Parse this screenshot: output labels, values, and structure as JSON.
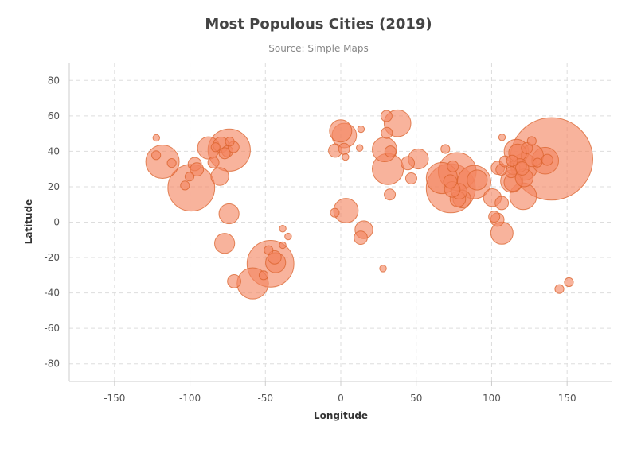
{
  "chart_data": {
    "type": "scatter",
    "title": "Most Populous Cities (2019)",
    "subtitle": "Source: Simple Maps",
    "xlabel": "Longitude",
    "ylabel": "Latitude",
    "xlim": [
      -180,
      180
    ],
    "ylim": [
      -90,
      90
    ],
    "x_ticks": [
      -150,
      -100,
      -50,
      0,
      50,
      100,
      150
    ],
    "y_ticks": [
      -80,
      -60,
      -40,
      -20,
      0,
      20,
      40,
      60,
      80
    ],
    "grid": true,
    "legend": "none",
    "colors": {
      "bubble_fill": "#f4845f",
      "bubble_stroke": "#d9622b",
      "grid": "#dddddd",
      "axis": "#cccccc"
    },
    "note": "each point: x = longitude, y = latitude, size = relative city size",
    "points": [
      {
        "x": 139.7,
        "y": 35.7,
        "size": 37
      },
      {
        "x": -99.1,
        "y": 19.4,
        "size": 21
      },
      {
        "x": -74.0,
        "y": 40.7,
        "size": 19
      },
      {
        "x": 72.9,
        "y": 19.1,
        "size": 22
      },
      {
        "x": 77.2,
        "y": 28.6,
        "size": 17
      },
      {
        "x": 88.4,
        "y": 22.6,
        "size": 15
      },
      {
        "x": 90.4,
        "y": 23.8,
        "size": 9
      },
      {
        "x": -46.6,
        "y": -23.5,
        "size": 21
      },
      {
        "x": -43.2,
        "y": -22.9,
        "size": 9
      },
      {
        "x": -58.4,
        "y": -34.6,
        "size": 14
      },
      {
        "x": 67.0,
        "y": 24.9,
        "size": 14
      },
      {
        "x": 121.5,
        "y": 31.2,
        "size": 12
      },
      {
        "x": 116.4,
        "y": 39.9,
        "size": 11
      },
      {
        "x": 113.3,
        "y": 23.1,
        "size": 10
      },
      {
        "x": 114.1,
        "y": 22.5,
        "size": 8
      },
      {
        "x": 120.9,
        "y": 14.6,
        "size": 12
      },
      {
        "x": 106.8,
        "y": -6.2,
        "size": 10
      },
      {
        "x": 126.9,
        "y": 37.6,
        "size": 10
      },
      {
        "x": 135.5,
        "y": 34.7,
        "size": 12
      },
      {
        "x": 31.2,
        "y": 30.0,
        "size": 14
      },
      {
        "x": 29.0,
        "y": 41.0,
        "size": 11
      },
      {
        "x": 37.6,
        "y": 55.8,
        "size": 12
      },
      {
        "x": 3.4,
        "y": 6.5,
        "size": 11
      },
      {
        "x": 15.3,
        "y": -4.3,
        "size": 8
      },
      {
        "x": -118.2,
        "y": 34.1,
        "size": 15
      },
      {
        "x": -87.6,
        "y": 41.9,
        "size": 10
      },
      {
        "x": -79.4,
        "y": 43.7,
        "size": 7
      },
      {
        "x": -77.0,
        "y": -12.0,
        "size": 9
      },
      {
        "x": -74.1,
        "y": 4.7,
        "size": 9
      },
      {
        "x": -70.7,
        "y": -33.4,
        "size": 6
      },
      {
        "x": 2.3,
        "y": 48.9,
        "size": 11
      },
      {
        "x": -0.1,
        "y": 51.5,
        "size": 10
      },
      {
        "x": 51.4,
        "y": 35.7,
        "size": 9
      },
      {
        "x": 80.3,
        "y": 13.1,
        "size": 8
      },
      {
        "x": 77.6,
        "y": 13.0,
        "size": 7
      },
      {
        "x": 78.5,
        "y": 17.4,
        "size": 7
      },
      {
        "x": 72.6,
        "y": 23.0,
        "size": 6
      },
      {
        "x": 73.9,
        "y": 18.5,
        "size": 7
      },
      {
        "x": 100.5,
        "y": 13.8,
        "size": 8
      },
      {
        "x": 106.7,
        "y": 10.8,
        "size": 6
      },
      {
        "x": 103.8,
        "y": 1.4,
        "size": 6
      },
      {
        "x": 101.7,
        "y": 3.1,
        "size": 5
      },
      {
        "x": 104.1,
        "y": 30.7,
        "size": 6
      },
      {
        "x": 106.5,
        "y": 29.6,
        "size": 5
      },
      {
        "x": 114.3,
        "y": 30.6,
        "size": 6
      },
      {
        "x": 117.2,
        "y": 39.1,
        "size": 8
      },
      {
        "x": 118.8,
        "y": 32.1,
        "size": 6
      },
      {
        "x": 120.2,
        "y": 30.3,
        "size": 6
      },
      {
        "x": 108.9,
        "y": 34.3,
        "size": 5
      },
      {
        "x": 123.4,
        "y": 41.8,
        "size": 5
      },
      {
        "x": 126.6,
        "y": 45.8,
        "size": 4
      },
      {
        "x": 113.6,
        "y": 34.7,
        "size": 5
      },
      {
        "x": 112.9,
        "y": 28.2,
        "size": 5
      },
      {
        "x": 121.6,
        "y": 25.0,
        "size": 8
      },
      {
        "x": 130.4,
        "y": 33.6,
        "size": 4
      },
      {
        "x": 136.9,
        "y": 35.2,
        "size": 5
      },
      {
        "x": 44.4,
        "y": 33.3,
        "size": 6
      },
      {
        "x": 46.7,
        "y": 24.7,
        "size": 5
      },
      {
        "x": 32.5,
        "y": 15.6,
        "size": 5
      },
      {
        "x": 30.5,
        "y": 50.4,
        "size": 5
      },
      {
        "x": 30.3,
        "y": 59.9,
        "size": 5
      },
      {
        "x": 32.9,
        "y": 39.9,
        "size": 5
      },
      {
        "x": 13.4,
        "y": 52.5,
        "size": 3
      },
      {
        "x": 12.5,
        "y": 41.9,
        "size": 3
      },
      {
        "x": 2.2,
        "y": 41.4,
        "size": 5
      },
      {
        "x": -3.7,
        "y": 40.4,
        "size": 6
      },
      {
        "x": 3.1,
        "y": 36.8,
        "size": 3
      },
      {
        "x": -4.0,
        "y": 5.3,
        "size": 4
      },
      {
        "x": 13.2,
        "y": -8.8,
        "size": 6
      },
      {
        "x": 28.0,
        "y": -26.2,
        "size": 3
      },
      {
        "x": -34.9,
        "y": -8.1,
        "size": 3
      },
      {
        "x": -38.5,
        "y": -3.7,
        "size": 3
      },
      {
        "x": -38.5,
        "y": -13.0,
        "size": 3
      },
      {
        "x": -43.9,
        "y": -19.9,
        "size": 6
      },
      {
        "x": -47.9,
        "y": -15.8,
        "size": 4
      },
      {
        "x": -51.2,
        "y": -30.0,
        "size": 4
      },
      {
        "x": -80.2,
        "y": 25.8,
        "size": 8
      },
      {
        "x": -84.4,
        "y": 33.7,
        "size": 5
      },
      {
        "x": -75.2,
        "y": 40.0,
        "size": 5
      },
      {
        "x": -77.0,
        "y": 38.9,
        "size": 5
      },
      {
        "x": -71.1,
        "y": 42.4,
        "size": 5
      },
      {
        "x": -83.0,
        "y": 42.3,
        "size": 4
      },
      {
        "x": -73.6,
        "y": 45.5,
        "size": 4
      },
      {
        "x": -96.8,
        "y": 32.8,
        "size": 6
      },
      {
        "x": -95.4,
        "y": 29.8,
        "size": 6
      },
      {
        "x": -122.4,
        "y": 37.8,
        "size": 4
      },
      {
        "x": -122.3,
        "y": 47.6,
        "size": 3
      },
      {
        "x": -112.1,
        "y": 33.4,
        "size": 4
      },
      {
        "x": -103.3,
        "y": 20.7,
        "size": 4
      },
      {
        "x": -100.3,
        "y": 25.7,
        "size": 4
      },
      {
        "x": 144.9,
        "y": -37.8,
        "size": 4
      },
      {
        "x": 151.2,
        "y": -33.9,
        "size": 4
      },
      {
        "x": 106.9,
        "y": 47.9,
        "size": 3
      },
      {
        "x": 69.3,
        "y": 41.3,
        "size": 4
      },
      {
        "x": 74.3,
        "y": 31.5,
        "size": 5
      }
    ]
  }
}
